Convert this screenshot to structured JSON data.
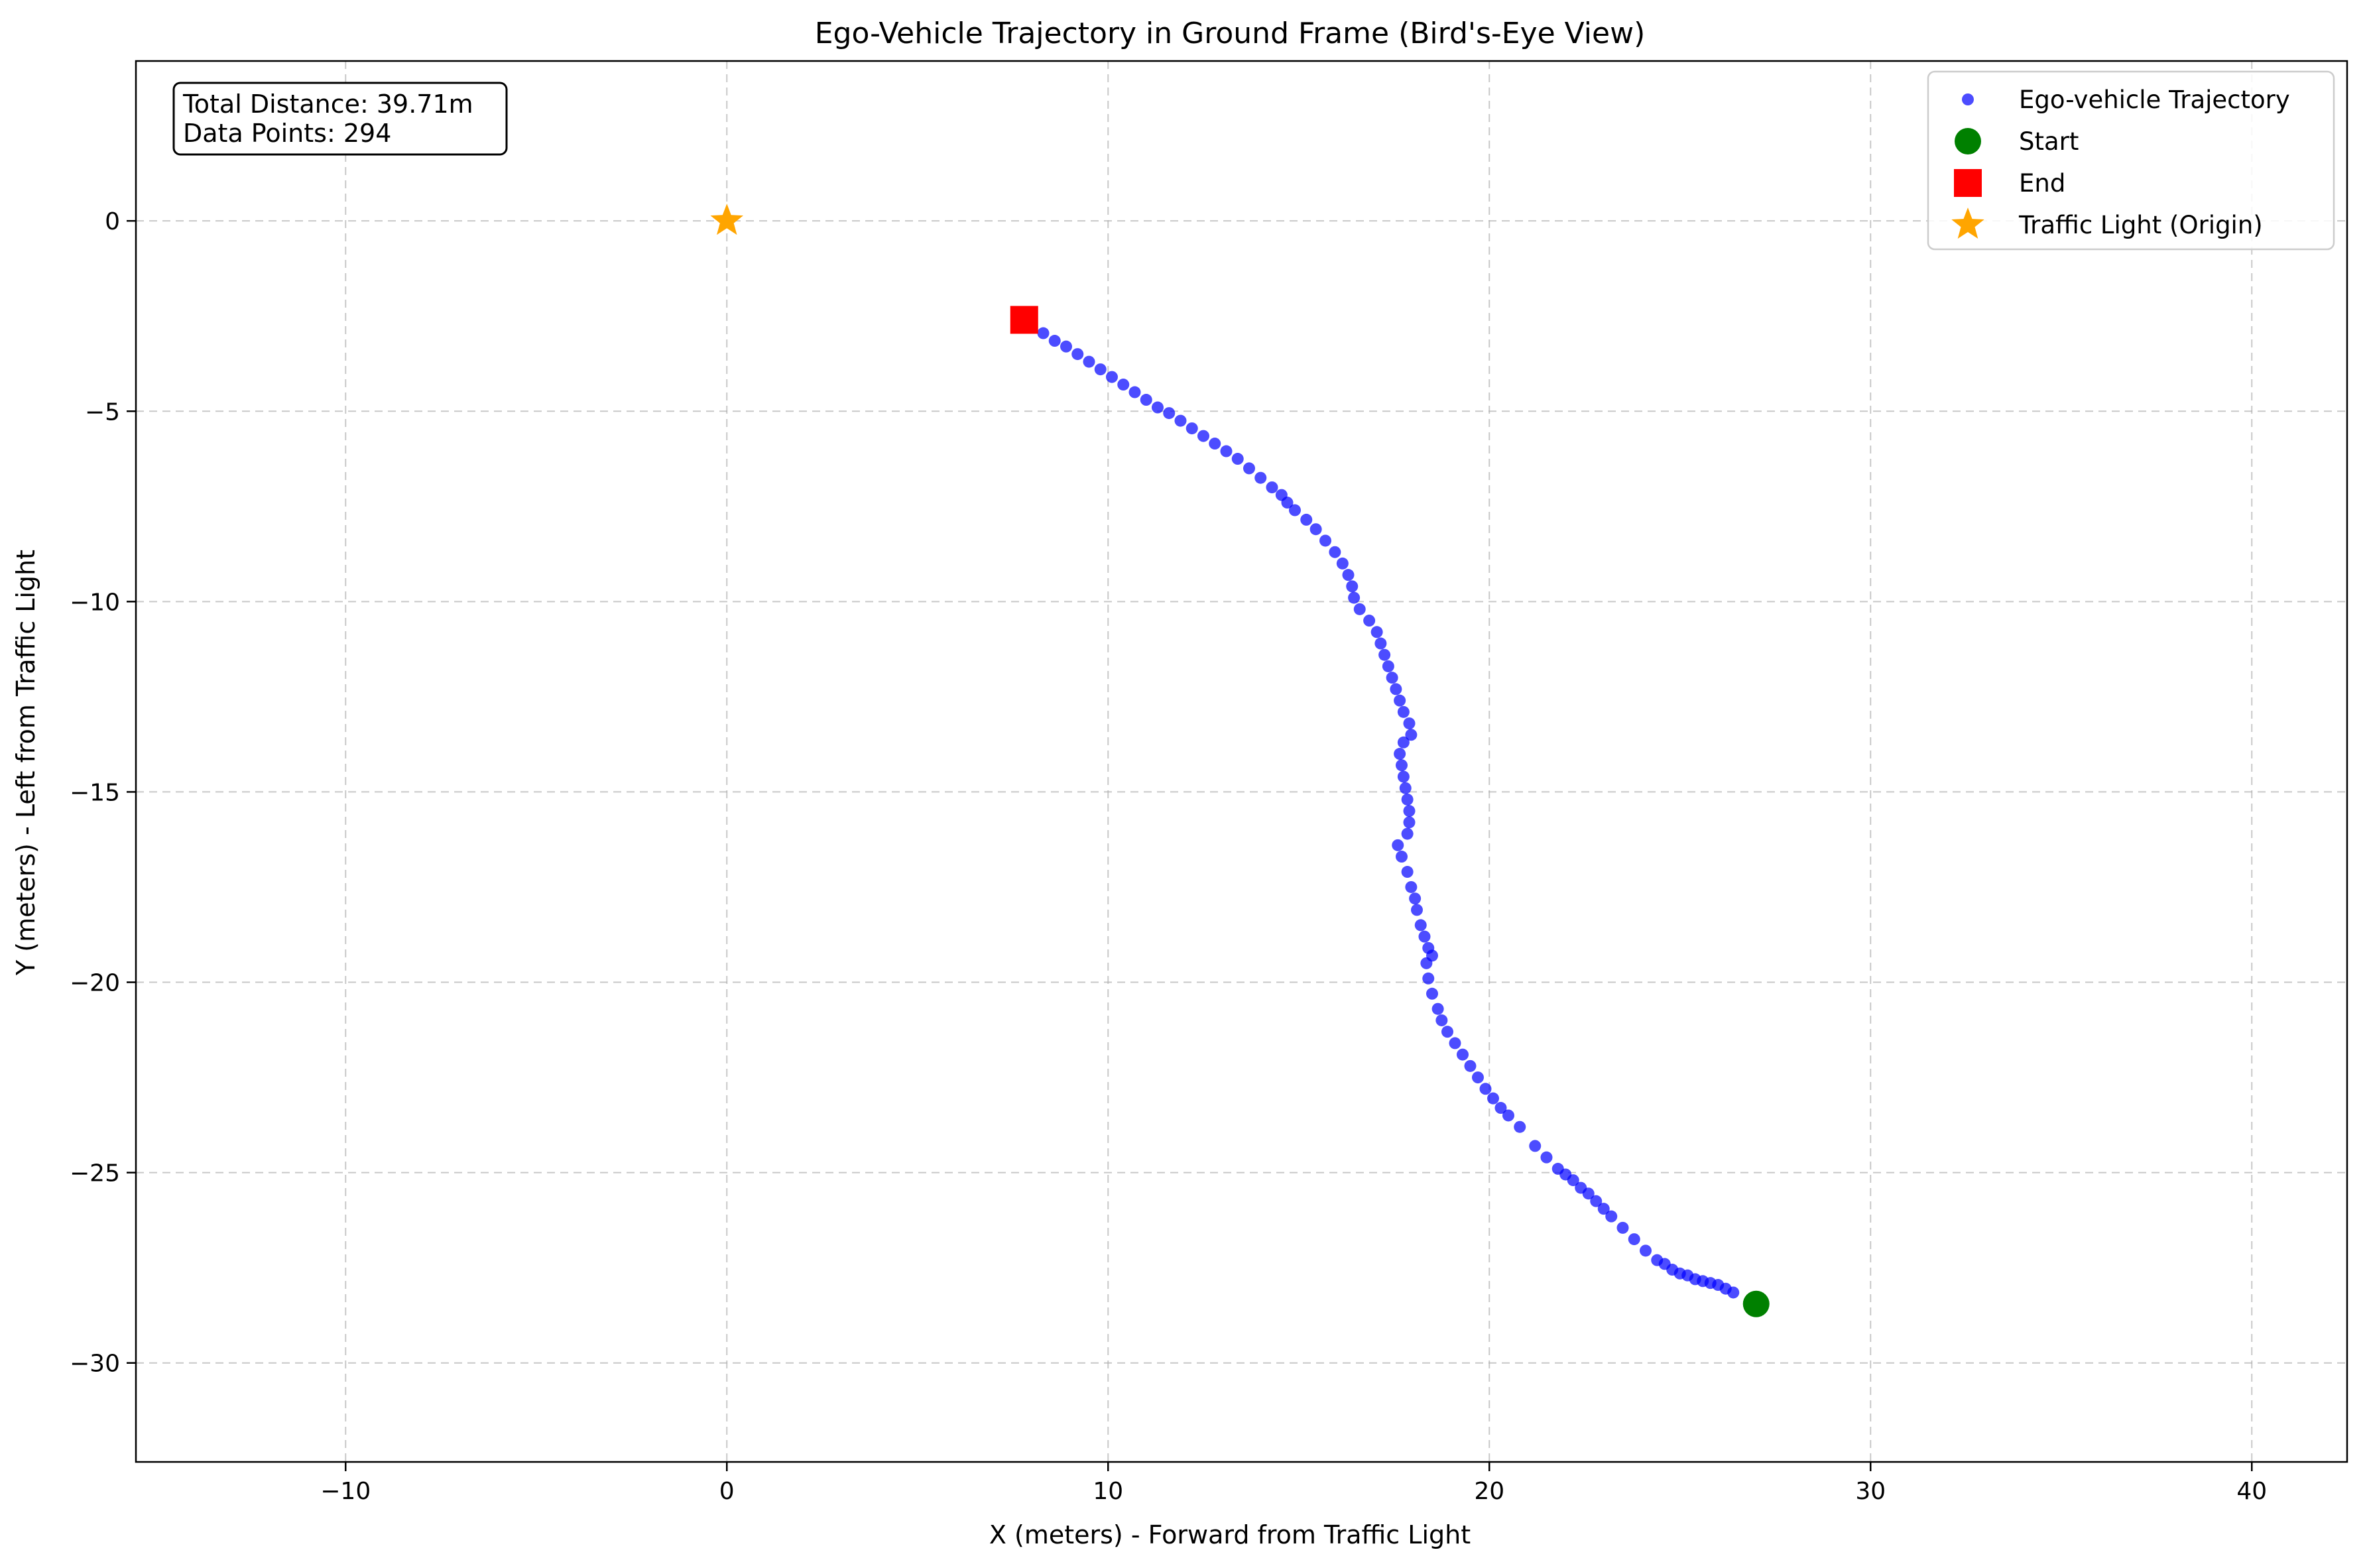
{
  "chart_data": {
    "type": "scatter",
    "title": "Ego-Vehicle Trajectory in Ground Frame (Bird's-Eye View)",
    "xlabel": "X (meters) - Forward from Traffic Light",
    "ylabel": "Y (meters) - Left from Traffic Light",
    "xlim": [
      -15.5,
      42.5
    ],
    "ylim": [
      -32.6,
      4.2
    ],
    "xticks": [
      -10,
      0,
      10,
      20,
      30,
      40
    ],
    "yticks": [
      0,
      -5,
      -10,
      -15,
      -20,
      -25,
      -30
    ],
    "xtick_labels": [
      "−10",
      "0",
      "10",
      "20",
      "30",
      "40"
    ],
    "ytick_labels": [
      "0",
      "−5",
      "−10",
      "−15",
      "−20",
      "−25",
      "−30"
    ],
    "grid": true,
    "legend_position": "top-right",
    "annotation_lines": [
      "Total Distance: 39.71m",
      "Data Points: 294"
    ],
    "series": [
      {
        "name": "Ego-vehicle Trajectory",
        "marker": "circle",
        "color": "#0000ff",
        "opacity": 0.7,
        "points": [
          [
            26.4,
            -28.15
          ],
          [
            26.2,
            -28.05
          ],
          [
            26.0,
            -27.95
          ],
          [
            25.8,
            -27.9
          ],
          [
            25.6,
            -27.85
          ],
          [
            25.4,
            -27.8
          ],
          [
            25.2,
            -27.7
          ],
          [
            25.0,
            -27.65
          ],
          [
            24.8,
            -27.55
          ],
          [
            24.6,
            -27.4
          ],
          [
            24.4,
            -27.3
          ],
          [
            24.1,
            -27.05
          ],
          [
            23.8,
            -26.75
          ],
          [
            23.5,
            -26.45
          ],
          [
            23.2,
            -26.15
          ],
          [
            23.0,
            -25.95
          ],
          [
            22.8,
            -25.75
          ],
          [
            22.6,
            -25.55
          ],
          [
            22.4,
            -25.4
          ],
          [
            22.2,
            -25.2
          ],
          [
            22.0,
            -25.05
          ],
          [
            21.8,
            -24.9
          ],
          [
            21.5,
            -24.6
          ],
          [
            21.2,
            -24.3
          ],
          [
            20.8,
            -23.8
          ],
          [
            20.5,
            -23.5
          ],
          [
            20.3,
            -23.3
          ],
          [
            20.1,
            -23.05
          ],
          [
            19.9,
            -22.8
          ],
          [
            19.7,
            -22.5
          ],
          [
            19.5,
            -22.2
          ],
          [
            19.3,
            -21.9
          ],
          [
            19.1,
            -21.6
          ],
          [
            18.9,
            -21.3
          ],
          [
            18.75,
            -21.0
          ],
          [
            18.65,
            -20.7
          ],
          [
            18.5,
            -20.3
          ],
          [
            18.4,
            -19.9
          ],
          [
            18.35,
            -19.5
          ],
          [
            18.5,
            -19.3
          ],
          [
            18.4,
            -19.1
          ],
          [
            18.3,
            -18.8
          ],
          [
            18.2,
            -18.5
          ],
          [
            18.1,
            -18.1
          ],
          [
            18.05,
            -17.8
          ],
          [
            17.95,
            -17.5
          ],
          [
            17.85,
            -17.1
          ],
          [
            17.7,
            -16.7
          ],
          [
            17.6,
            -16.4
          ],
          [
            17.85,
            -16.1
          ],
          [
            17.9,
            -15.8
          ],
          [
            17.9,
            -15.5
          ],
          [
            17.85,
            -15.2
          ],
          [
            17.8,
            -14.9
          ],
          [
            17.75,
            -14.6
          ],
          [
            17.7,
            -14.3
          ],
          [
            17.65,
            -14.0
          ],
          [
            17.75,
            -13.7
          ],
          [
            17.95,
            -13.5
          ],
          [
            17.9,
            -13.2
          ],
          [
            17.75,
            -12.9
          ],
          [
            17.65,
            -12.6
          ],
          [
            17.55,
            -12.3
          ],
          [
            17.45,
            -12.0
          ],
          [
            17.35,
            -11.7
          ],
          [
            17.25,
            -11.4
          ],
          [
            17.15,
            -11.1
          ],
          [
            17.05,
            -10.8
          ],
          [
            16.85,
            -10.5
          ],
          [
            16.6,
            -10.2
          ],
          [
            16.45,
            -9.9
          ],
          [
            16.4,
            -9.6
          ],
          [
            16.3,
            -9.3
          ],
          [
            16.15,
            -9.0
          ],
          [
            15.95,
            -8.7
          ],
          [
            15.7,
            -8.4
          ],
          [
            15.45,
            -8.1
          ],
          [
            15.2,
            -7.85
          ],
          [
            14.9,
            -7.6
          ],
          [
            14.7,
            -7.4
          ],
          [
            14.55,
            -7.2
          ],
          [
            14.3,
            -7.0
          ],
          [
            14.0,
            -6.75
          ],
          [
            13.7,
            -6.5
          ],
          [
            13.4,
            -6.25
          ],
          [
            13.1,
            -6.05
          ],
          [
            12.8,
            -5.85
          ],
          [
            12.5,
            -5.65
          ],
          [
            12.2,
            -5.45
          ],
          [
            11.9,
            -5.25
          ],
          [
            11.6,
            -5.05
          ],
          [
            11.3,
            -4.9
          ],
          [
            11.0,
            -4.7
          ],
          [
            10.7,
            -4.5
          ],
          [
            10.4,
            -4.3
          ],
          [
            10.1,
            -4.1
          ],
          [
            9.8,
            -3.9
          ],
          [
            9.5,
            -3.7
          ],
          [
            9.2,
            -3.5
          ],
          [
            8.9,
            -3.3
          ],
          [
            8.6,
            -3.15
          ],
          [
            8.3,
            -2.95
          ],
          [
            8.0,
            -2.75
          ]
        ]
      },
      {
        "name": "Start",
        "marker": "circle",
        "color": "#008000",
        "points": [
          [
            27.0,
            -28.45
          ]
        ]
      },
      {
        "name": "End",
        "marker": "square",
        "color": "#ff0000",
        "points": [
          [
            7.8,
            -2.6
          ]
        ]
      },
      {
        "name": "Traffic Light (Origin)",
        "marker": "star",
        "color": "#ffa500",
        "points": [
          [
            0,
            0
          ]
        ]
      }
    ]
  }
}
